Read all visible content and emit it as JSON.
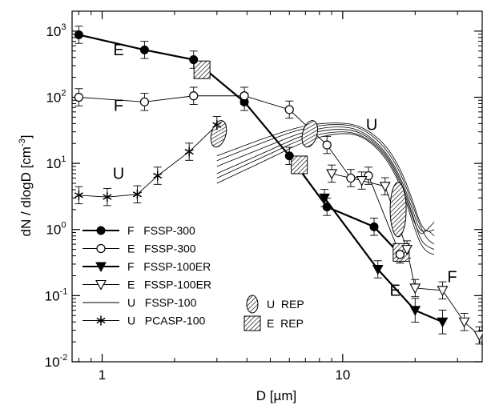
{
  "chart_data": {
    "type": "scatter",
    "xlabel": "D [µm]",
    "ylabel": "dN / dlogD [cm",
    "ylabel_sup": "-3",
    "ylabel_end": "]",
    "x_scale": "log",
    "y_scale": "log",
    "xlim": [
      0.75,
      38
    ],
    "ylim": [
      0.01,
      2000
    ],
    "x_ticks": [
      {
        "v": 1,
        "label": "1"
      },
      {
        "v": 10,
        "label": "10"
      }
    ],
    "y_ticks": [
      {
        "v": 0.01,
        "base": "10",
        "exp": "-2"
      },
      {
        "v": 0.1,
        "base": "10",
        "exp": "-1"
      },
      {
        "v": 1,
        "base": "10",
        "exp": "0"
      },
      {
        "v": 10,
        "base": "10",
        "exp": "1"
      },
      {
        "v": 100,
        "base": "10",
        "exp": "2"
      },
      {
        "v": 1000,
        "base": "10",
        "exp": "3"
      }
    ],
    "series": [
      {
        "name": "F   FSSP-300",
        "marker": "filled-circle",
        "line": "bold",
        "x": [
          0.8,
          1.5,
          2.4,
          3.9,
          6.0,
          8.6,
          13.5,
          17.3
        ],
        "y": [
          880,
          520,
          370,
          85,
          13,
          2.2,
          1.1,
          0.42
        ],
        "err": [
          0.13,
          0.13,
          0.13,
          0.13,
          0.13,
          0.13,
          0.13,
          0.13
        ]
      },
      {
        "name": "E   FSSP-300",
        "marker": "open-circle",
        "line": "thin",
        "x": [
          0.8,
          1.5,
          2.4,
          3.9,
          6.0,
          8.6,
          10.8,
          12.8,
          17.3
        ],
        "y": [
          100,
          85,
          105,
          105,
          65,
          19,
          6.0,
          6.5,
          0.42
        ],
        "err": [
          0.13,
          0.13,
          0.13,
          0.13,
          0.13,
          0.13,
          0.13,
          0.13,
          0.13
        ]
      },
      {
        "name": "F   FSSP-100ER",
        "marker": "filled-triangle",
        "line": "bold",
        "x": [
          8.4,
          14.0,
          20.0,
          26.0
        ],
        "y": [
          3.0,
          0.25,
          0.06,
          0.04
        ],
        "err": [
          0.13,
          0.13,
          0.18,
          0.18
        ]
      },
      {
        "name": "E   FSSP-100ER",
        "marker": "open-triangle",
        "line": "thin",
        "x": [
          9.0,
          12.0,
          15.0,
          18.5,
          20.0,
          26.0,
          32.0,
          37.0
        ],
        "y": [
          7.0,
          5.5,
          4.5,
          0.5,
          0.13,
          0.12,
          0.04,
          0.025
        ],
        "err": [
          0.13,
          0.13,
          0.13,
          0.13,
          0.13,
          0.13,
          0.13,
          0.13
        ]
      },
      {
        "name": "U   FSSP-100",
        "marker": "none",
        "line": "thin"
      },
      {
        "name": "U   PCASP-100",
        "marker": "asterisk",
        "line": "thin",
        "x": [
          0.8,
          1.05,
          1.4,
          1.7,
          2.3,
          3.0
        ],
        "y": [
          3.3,
          3.1,
          3.4,
          6.5,
          15,
          38
        ],
        "err": [
          0.13,
          0.13,
          0.13,
          0.13,
          0.13,
          0.13
        ]
      }
    ],
    "fssp100_curves": [
      {
        "x": [
          3.0,
          5.0,
          7.0,
          9.5,
          12.0,
          15.0,
          17.5,
          19.5,
          21.0,
          22.5,
          24.0
        ],
        "y": [
          6.0,
          14.0,
          25.0,
          31.0,
          28.0,
          14.0,
          5.0,
          1.5,
          0.8,
          1.0,
          1.3
        ]
      },
      {
        "x": [
          3.0,
          5.0,
          7.0,
          9.5,
          12.0,
          15.0,
          17.5,
          19.5,
          21.0,
          22.5,
          24.0
        ],
        "y": [
          9.0,
          19.0,
          31.0,
          37.0,
          32.0,
          16.0,
          6.0,
          2.0,
          0.9,
          1.0,
          0.8
        ]
      },
      {
        "x": [
          3.0,
          5.0,
          7.0,
          9.5,
          12.0,
          15.0,
          17.5,
          19.5,
          21.0,
          22.5,
          24.0
        ],
        "y": [
          11.0,
          23.0,
          35.0,
          40.0,
          35.0,
          18.0,
          7.0,
          2.4,
          1.1,
          0.7,
          0.6
        ]
      },
      {
        "x": [
          3.0,
          5.0,
          7.0,
          9.5,
          12.0,
          15.0,
          17.5,
          19.5,
          21.0,
          22.5,
          24.0
        ],
        "y": [
          7.0,
          16.0,
          28.0,
          34.0,
          30.0,
          15.0,
          5.5,
          1.7,
          0.7,
          0.55,
          0.5
        ]
      },
      {
        "x": [
          3.0,
          5.0,
          7.0,
          9.5,
          12.0,
          15.0,
          17.5,
          19.5,
          21.0,
          22.5,
          24.0
        ],
        "y": [
          5.0,
          12.0,
          22.0,
          29.0,
          27.0,
          13.0,
          4.5,
          1.3,
          0.6,
          0.45,
          0.42
        ]
      },
      {
        "x": [
          3.0,
          5.0,
          7.0,
          9.5,
          12.0,
          15.0,
          17.5,
          19.5,
          21.0,
          22.5,
          24.0
        ],
        "y": [
          13.0,
          26.0,
          38.0,
          42.0,
          37.0,
          20.0,
          8.0,
          2.8,
          1.2,
          0.9,
          1.0
        ]
      }
    ],
    "rep_markers": [
      {
        "name": "U REP",
        "style": "ellipse-hatch",
        "x": 3.05,
        "y": 28
      },
      {
        "name": "U REP",
        "style": "ellipse-hatch",
        "x": 7.3,
        "y": 28
      },
      {
        "name": "U REP",
        "style": "ellipse-hatch",
        "x": 17.0,
        "y": 2.0
      },
      {
        "name": "E REP",
        "style": "square-hatch",
        "x": 2.6,
        "y": 260
      },
      {
        "name": "E REP",
        "style": "square-hatch",
        "x": 6.6,
        "y": 9.5
      },
      {
        "name": "E REP",
        "style": "square-hatch",
        "x": 17.5,
        "y": 0.45
      }
    ],
    "annotations": [
      {
        "text": "E",
        "x": 1.17,
        "y": 430
      },
      {
        "text": "F",
        "x": 1.17,
        "y": 62
      },
      {
        "text": "U",
        "x": 1.17,
        "y": 5.8
      },
      {
        "text": "U",
        "x": 13.2,
        "y": 32
      },
      {
        "text": "F",
        "x": 28.5,
        "y": 0.16
      },
      {
        "text": "E",
        "x": 16.5,
        "y": 0.1
      }
    ],
    "legend": {
      "placement": "bottom-left",
      "entries": [
        {
          "marker": "filled-circle",
          "label": "F   FSSP-300"
        },
        {
          "marker": "open-circle",
          "label": "E   FSSP-300"
        },
        {
          "marker": "filled-triangle",
          "label": "F   FSSP-100ER"
        },
        {
          "marker": "open-triangle",
          "label": "E   FSSP-100ER"
        },
        {
          "marker": "none",
          "label": "U   FSSP-100"
        },
        {
          "marker": "asterisk",
          "label": "U   PCASP-100"
        }
      ],
      "rep_entries": [
        {
          "style": "ellipse-hatch",
          "label": "U  REP"
        },
        {
          "style": "square-hatch",
          "label": "E  REP"
        }
      ]
    },
    "grid": false
  }
}
